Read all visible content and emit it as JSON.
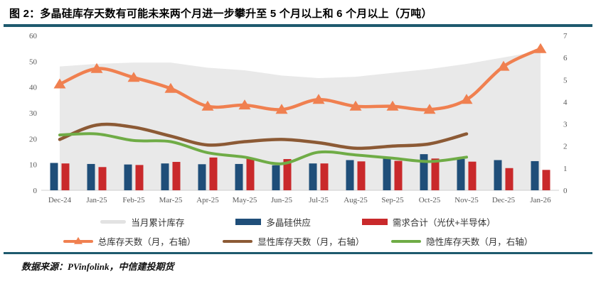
{
  "header": {
    "title": "图 2：多晶硅库存天数有可能未来两个月进一步攀升至 5 个月以上和 6 个月以上（万吨）"
  },
  "footer": {
    "source": "数据来源：PVinfolink，中信建投期货"
  },
  "colors": {
    "teal_rule": "#1E5A6E",
    "supply_bar_blue": "#1F4E79",
    "demand_bar_red": "#C9292B",
    "total_days_orange": "#F08050",
    "explicit_days_brown": "#8C5A35",
    "implicit_days_green": "#6FAC46",
    "cumulative_area_gray": "#E9E9E9",
    "axis_text": "#595959",
    "axis_line": "#CFCFCF"
  },
  "chart_data": {
    "type": "combo",
    "title": "多晶硅库存天数",
    "categories": [
      "Dec-24",
      "Jan-25",
      "Feb-25",
      "Mar-25",
      "Apr-25",
      "May-25",
      "Jun-25",
      "Jul-25",
      "Aug-25",
      "Sep-25",
      "Oct-25",
      "Nov-25",
      "Dec-25",
      "Jan-26"
    ],
    "left_axis": {
      "min": 0,
      "max": 60,
      "ticks": [
        "0",
        "10",
        "20",
        "30",
        "40",
        "50",
        "60"
      ]
    },
    "right_axis": {
      "min": 0,
      "max": 7,
      "ticks": [
        "0",
        "1",
        "2",
        "3",
        "4",
        "5",
        "6",
        "7"
      ]
    },
    "grid": false,
    "legend_position": "bottom",
    "series": [
      {
        "name": "当月累计库存",
        "type": "area",
        "axis": "left",
        "values": [
          48,
          49,
          49.5,
          49.5,
          47.5,
          46.5,
          44.5,
          43.5,
          44,
          45.5,
          47,
          49,
          51.5,
          54
        ]
      },
      {
        "name": "多晶硅供应",
        "type": "bar",
        "axis": "left",
        "values": [
          10.6,
          10.2,
          10.0,
          10.4,
          10.1,
          10.2,
          9.7,
          10.4,
          11.7,
          12.4,
          14.0,
          12.2,
          11.7,
          11.3
        ]
      },
      {
        "name": "需求合计（光伏+半导体）",
        "type": "bar",
        "axis": "left",
        "values": [
          10.4,
          9.0,
          9.8,
          11.0,
          12.7,
          12.4,
          12.1,
          10.4,
          11.2,
          11.4,
          12.3,
          11.1,
          8.6,
          7.9
        ]
      },
      {
        "name": "总库存天数（月，右轴）",
        "type": "line",
        "axis": "right",
        "marker": "triangle",
        "values": [
          4.8,
          5.5,
          5.1,
          4.6,
          3.8,
          3.85,
          3.65,
          4.1,
          3.8,
          3.8,
          3.65,
          4.1,
          5.6,
          6.4
        ]
      },
      {
        "name": "显性库存天数（月，右轴）",
        "type": "line",
        "axis": "right",
        "values": [
          2.3,
          2.95,
          2.85,
          2.45,
          2.05,
          2.2,
          2.3,
          2.15,
          1.9,
          2.0,
          2.1,
          2.55
        ]
      },
      {
        "name": "隐性库存天数（月，右轴）",
        "type": "line",
        "axis": "right",
        "values": [
          2.5,
          2.55,
          2.25,
          2.2,
          1.7,
          1.5,
          1.2,
          1.72,
          1.6,
          1.45,
          1.3,
          1.5
        ]
      }
    ]
  }
}
